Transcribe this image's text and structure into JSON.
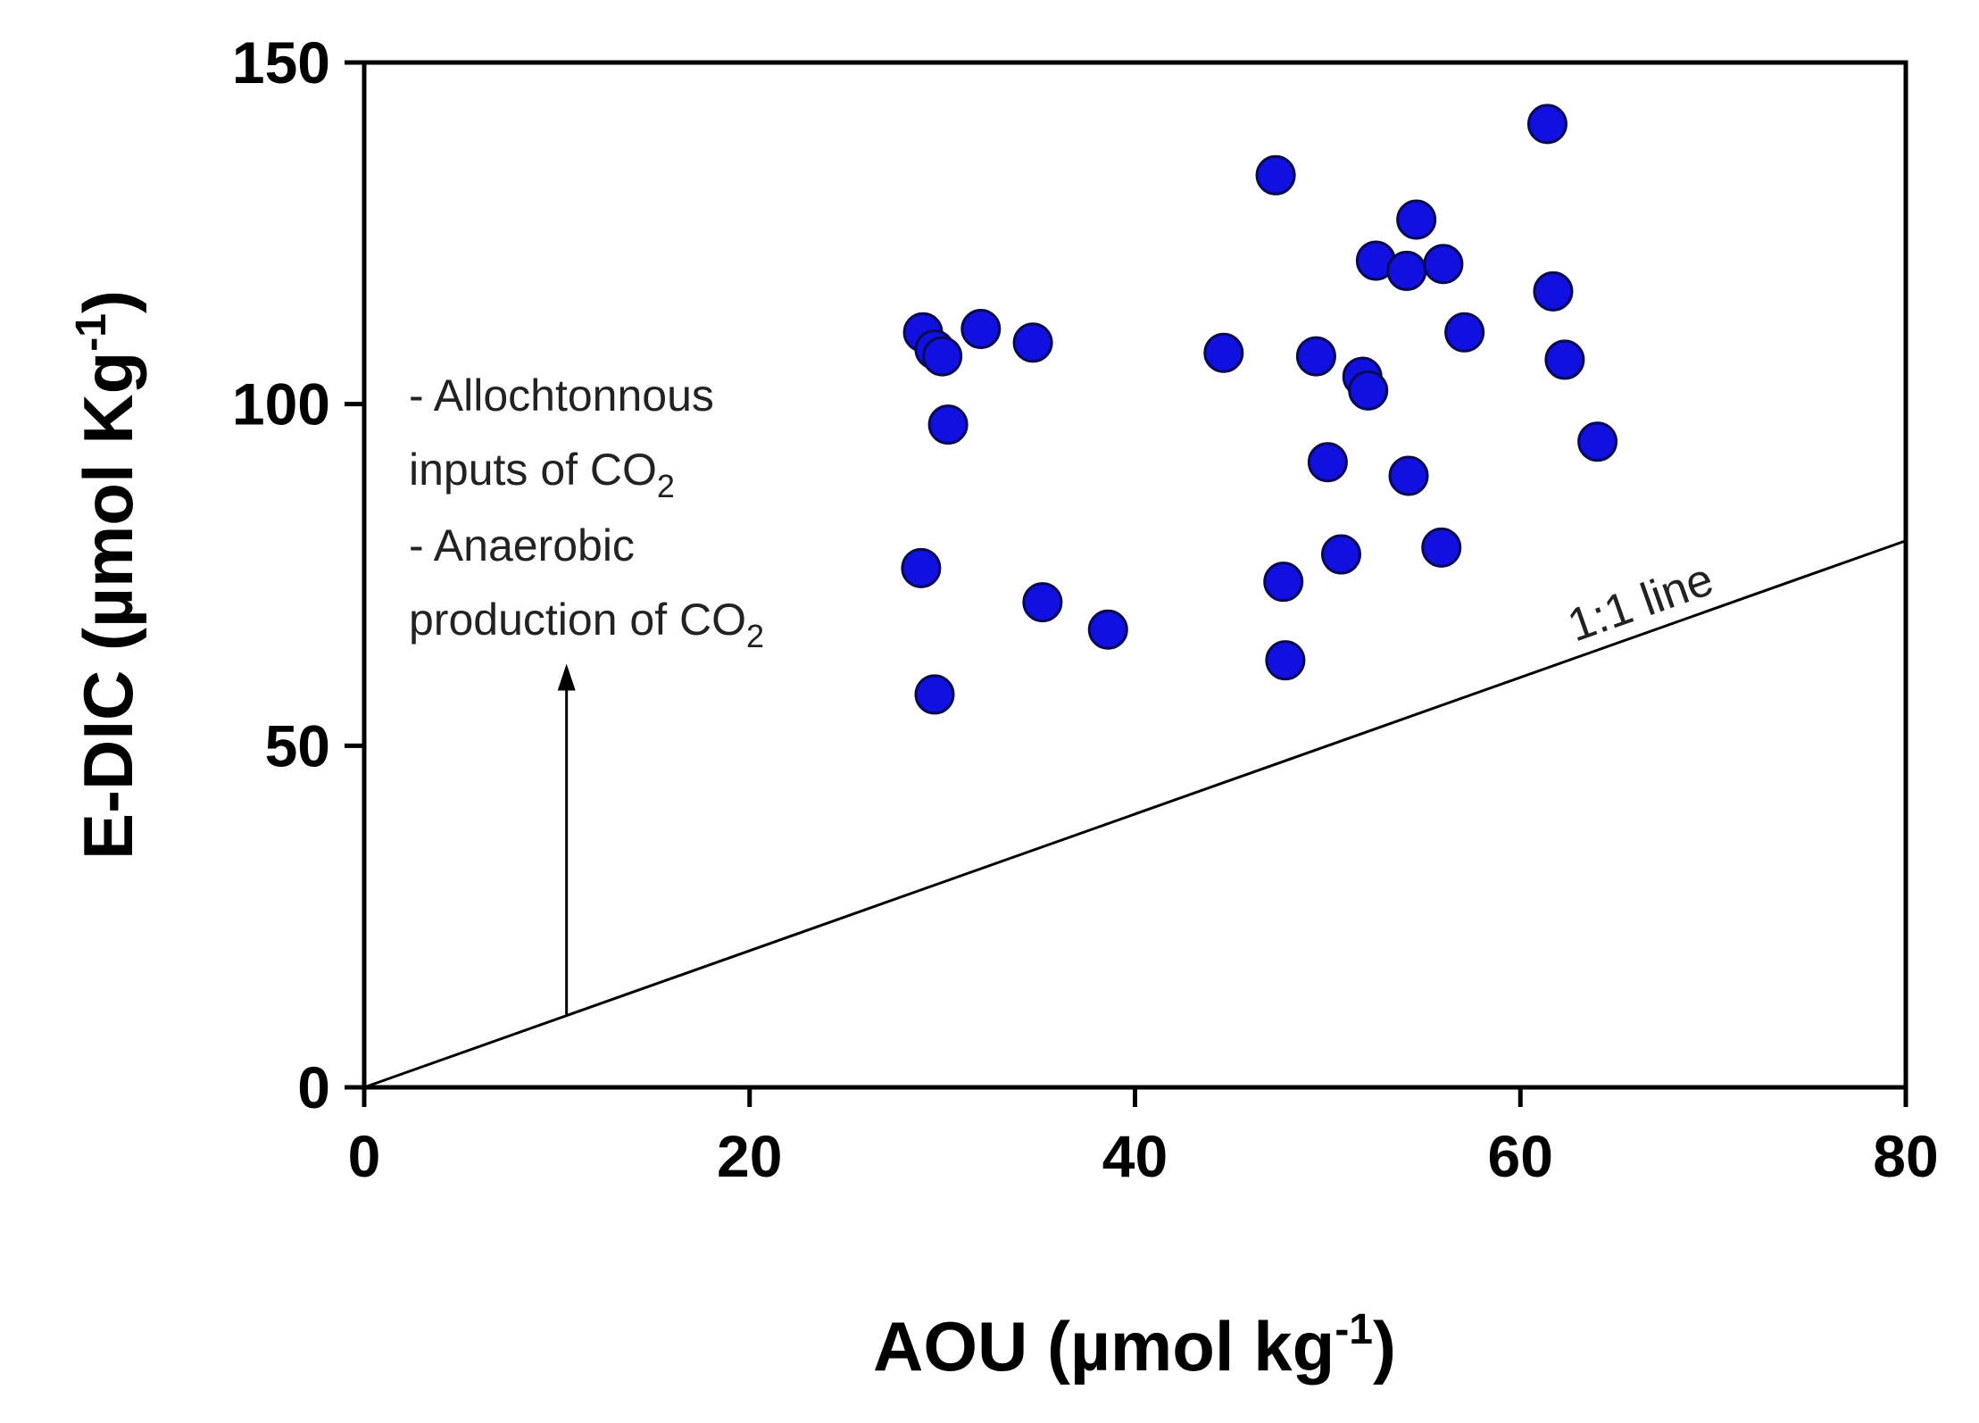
{
  "chart_data": {
    "type": "scatter",
    "title": "",
    "xlabel": "AOU (µmol kg",
    "xlabel_sup": "-1",
    "xlabel_close": ")",
    "ylabel": "E-DIC (µmol Kg",
    "ylabel_sup": "-1",
    "ylabel_close": ")",
    "xlim": [
      0,
      80
    ],
    "ylim": [
      0,
      150
    ],
    "xticks": [
      0,
      20,
      40,
      60,
      80
    ],
    "yticks": [
      0,
      50,
      100,
      150
    ],
    "grid": false,
    "marker_color": "#1010e0",
    "marker_edge_color": "#0a0a50",
    "series": [
      {
        "points": [
          [
            29.0,
            110.5
          ],
          [
            29.6,
            108.0
          ],
          [
            30.0,
            107.0
          ],
          [
            30.3,
            97.0
          ],
          [
            32.0,
            111.0
          ],
          [
            34.7,
            109.0
          ],
          [
            28.9,
            76.0
          ],
          [
            35.2,
            71.0
          ],
          [
            38.6,
            67.0
          ],
          [
            29.6,
            57.5
          ],
          [
            44.6,
            107.5
          ],
          [
            47.3,
            133.5
          ],
          [
            47.7,
            74.0
          ],
          [
            47.8,
            62.5
          ],
          [
            49.4,
            107.0
          ],
          [
            50.0,
            91.5
          ],
          [
            50.7,
            78.0
          ],
          [
            51.8,
            104.0
          ],
          [
            52.1,
            102.0
          ],
          [
            52.5,
            121.0
          ],
          [
            54.1,
            119.5
          ],
          [
            54.6,
            127.0
          ],
          [
            56.0,
            120.5
          ],
          [
            57.1,
            110.5
          ],
          [
            54.2,
            89.5
          ],
          [
            55.9,
            79.0
          ],
          [
            61.4,
            141.0
          ],
          [
            61.7,
            116.5
          ],
          [
            62.3,
            106.5
          ],
          [
            64.0,
            94.5
          ]
        ]
      }
    ],
    "reference_line": {
      "label": "1:1 line",
      "slope": 1,
      "from": [
        0,
        0
      ],
      "to": [
        80,
        80
      ]
    },
    "annotation": {
      "lines": [
        {
          "text": "- Allochtonnous",
          "sub": ""
        },
        {
          "text": "inputs of CO",
          "sub": "2"
        },
        {
          "text": "- Anaerobic",
          "sub": ""
        },
        {
          "text": "production of CO",
          "sub": "2"
        }
      ],
      "arrow_x": 10.5,
      "arrow_from_y": 10.5,
      "arrow_to_y": 62
    }
  }
}
